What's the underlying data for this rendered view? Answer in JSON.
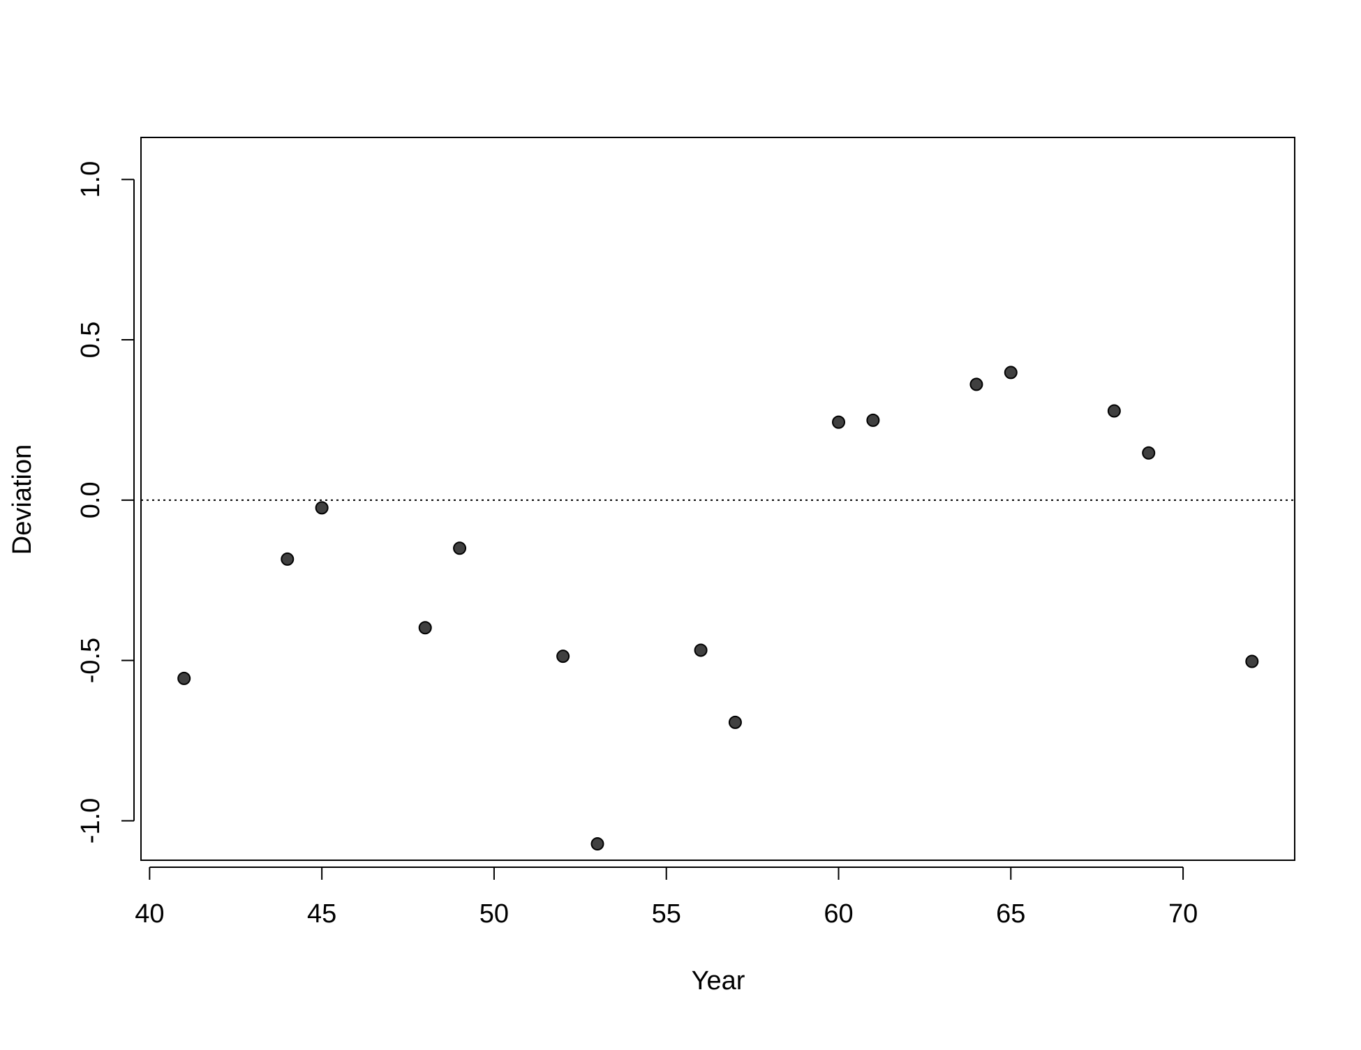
{
  "chart_data": {
    "type": "scatter",
    "x_label": "Year",
    "y_label": "Deviation",
    "series": [
      {
        "name": "Deviation",
        "color": "#404040",
        "x": [
          41,
          44,
          45,
          48,
          49,
          52,
          53,
          56,
          57,
          60,
          61,
          64,
          65,
          68,
          69,
          72
        ],
        "values": [
          -0.556,
          -0.184,
          -0.024,
          -0.398,
          -0.15,
          -0.487,
          -1.072,
          -0.468,
          -0.693,
          0.243,
          0.249,
          0.361,
          0.398,
          0.278,
          0.147,
          -0.503
        ]
      }
    ],
    "xlim": [
      39.75,
      73.24
    ],
    "xticks": [
      40,
      45,
      50,
      55,
      60,
      65,
      70
    ],
    "ylim": [
      -1.123,
      1.131
    ],
    "yticks": [
      {
        "value": -1,
        "label": "-1.0"
      },
      {
        "value": -0.5,
        "label": "-0.5"
      },
      {
        "value": 0,
        "label": "0.0"
      },
      {
        "value": 0.5,
        "label": "0.5"
      },
      {
        "value": 1,
        "label": "1.0"
      }
    ],
    "hline": 0,
    "grid": false
  }
}
